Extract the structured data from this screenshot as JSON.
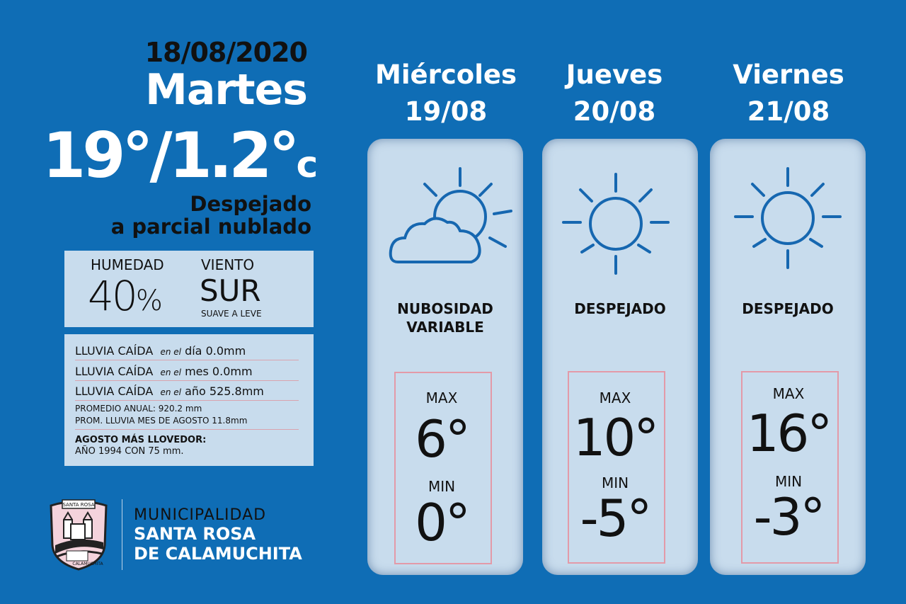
{
  "today": {
    "date": "18/08/2020",
    "day": "Martes",
    "max": "19°",
    "sep": "/",
    "min": "1.2°",
    "unit": "c",
    "condition_line1": "Despejado",
    "condition_line2": "a parcial nublado"
  },
  "humidity": {
    "label": "HUMEDAD",
    "value": "40",
    "unit": "%"
  },
  "wind": {
    "label": "VIENTO",
    "value": "SUR",
    "sub": "SUAVE A LEVE"
  },
  "rain": [
    {
      "label": "LLUVIA CAÍDA",
      "connector": "en el",
      "period": "día",
      "value": "0.0mm"
    },
    {
      "label": "LLUVIA CAÍDA",
      "connector": "en el",
      "period": "mes",
      "value": "0.0mm"
    },
    {
      "label": "LLUVIA CAÍDA",
      "connector": "en el",
      "period": "año",
      "value": "525.8mm"
    }
  ],
  "averages": {
    "annual": "PROMEDIO ANUAL: 920.2 mm",
    "august": "PROM. LLUVIA MES DE AGOSTO 11.8mm"
  },
  "record": {
    "title": "AGOSTO MÁS LLOVEDOR:",
    "value": "AÑO 1994 CON 75 mm."
  },
  "municipality": {
    "line1": "MUNICIPALIDAD",
    "line2": "SANTA ROSA",
    "line3": "DE CALAMUCHITA",
    "logo_text_top": "SANTA ROSA",
    "logo_text_bottom": "CALAMUCHITA"
  },
  "forecast": [
    {
      "day": "Miércoles",
      "date": "19/08",
      "icon": "partly-cloudy-icon",
      "condition_line1": "NUBOSIDAD",
      "condition_line2": "VARIABLE",
      "max_label": "MAX",
      "max": "6°",
      "min_label": "MIN",
      "min": "0°"
    },
    {
      "day": "Jueves",
      "date": "20/08",
      "icon": "sun-icon",
      "condition_line1": "DESPEJADO",
      "condition_line2": "",
      "max_label": "MAX",
      "max": "10°",
      "min_label": "MIN",
      "min": "-5°"
    },
    {
      "day": "Viernes",
      "date": "21/08",
      "icon": "sun-icon",
      "condition_line1": "DESPEJADO",
      "condition_line2": "",
      "max_label": "MAX",
      "max": "16°",
      "min_label": "MIN",
      "min": "-3°"
    }
  ],
  "colors": {
    "background": "#0f6db5",
    "panel": "#c8dced",
    "icon_stroke": "#1667b0",
    "temp_border": "#e39aa8"
  }
}
